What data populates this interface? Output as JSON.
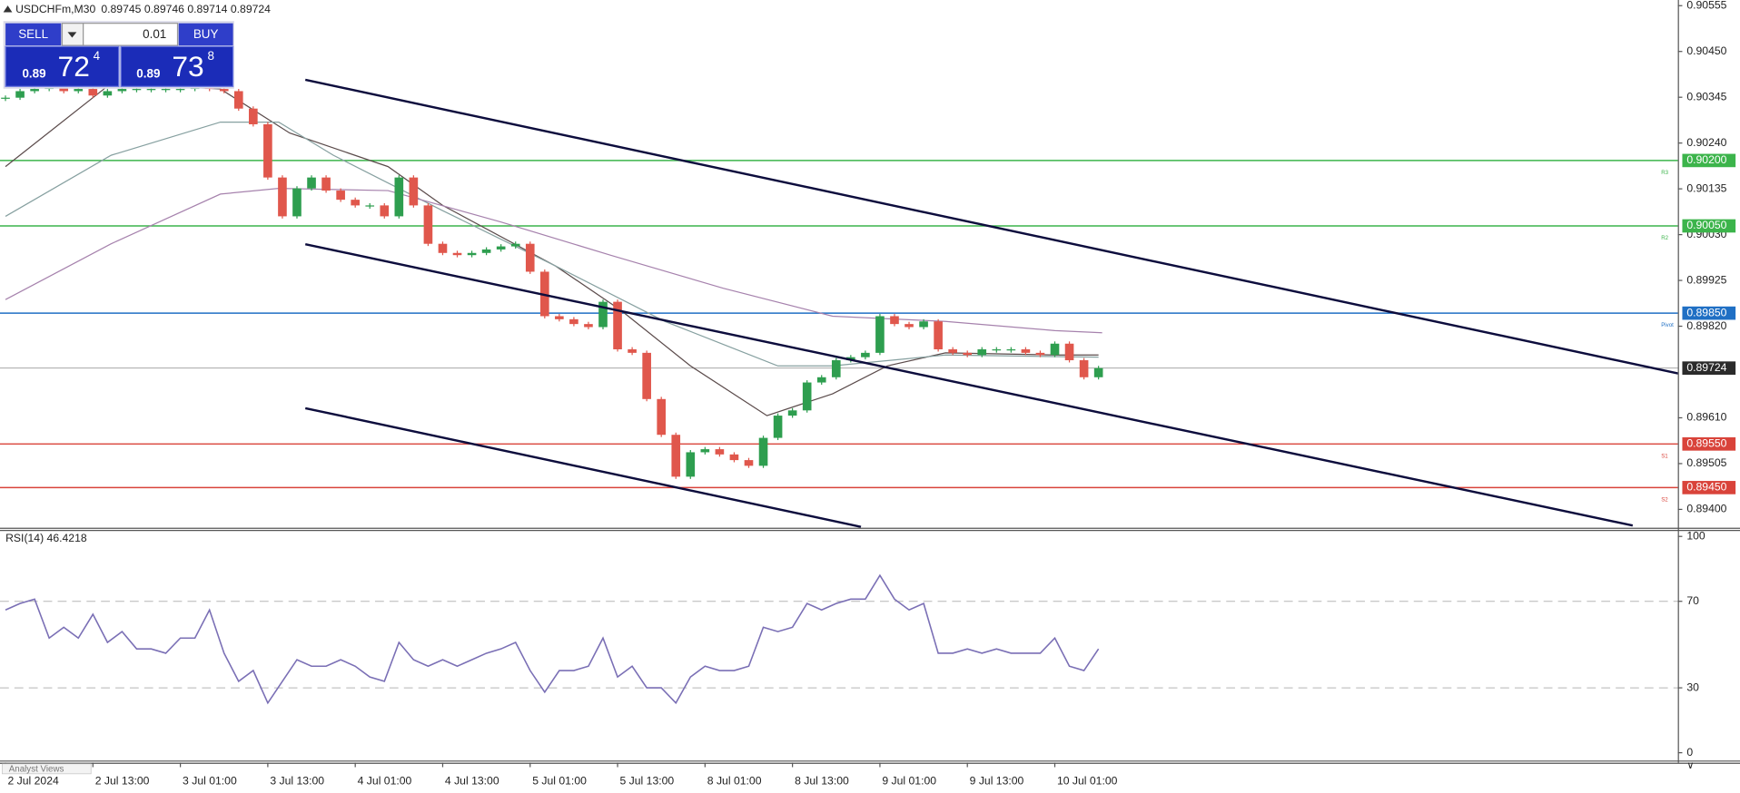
{
  "trade_panel": {
    "sell": "SELL",
    "lot": "0.01",
    "buy": "BUY",
    "bid_prefix": "0.89",
    "bid_big": "72",
    "bid_small": "4",
    "ask_prefix": "0.89",
    "ask_big": "73",
    "ask_small": "8"
  },
  "footer_tab": "Analyst Views",
  "chart_data": [
    {
      "type": "candlestick",
      "title": "USDCHFm,M30",
      "subtitle": "0.89745 0.89746 0.89714 0.89724",
      "up_color": "#2e9e4f",
      "down_color": "#e0574c",
      "x": [
        0,
        4,
        8,
        12,
        16,
        20,
        24,
        28,
        32,
        36,
        40,
        44,
        48,
        52,
        56,
        60,
        64,
        68,
        72,
        76,
        80,
        84,
        88,
        92,
        96,
        100,
        104,
        108,
        112,
        116,
        120,
        124,
        128,
        132,
        136,
        140,
        144,
        148,
        152,
        156,
        160,
        164,
        168,
        172,
        176,
        180,
        184,
        188,
        192,
        196,
        200,
        204,
        208,
        212,
        216,
        220,
        224,
        228,
        232,
        236,
        240,
        244,
        248,
        252,
        256,
        260,
        264,
        268,
        272,
        276,
        280,
        284,
        288,
        292,
        296,
        300
      ],
      "values": [
        0.90344,
        0.90359,
        0.90364,
        0.90369,
        0.90359,
        0.90364,
        0.90349,
        0.90359,
        0.90364,
        0.90364,
        0.90364,
        0.90364,
        0.90364,
        0.90369,
        0.90364,
        0.90359,
        0.90319,
        0.90283,
        0.90161,
        0.90072,
        0.90136,
        0.90161,
        0.90131,
        0.9011,
        0.90097,
        0.90097,
        0.90072,
        0.90161,
        0.90097,
        0.90009,
        0.89988,
        0.89983,
        0.89988,
        0.89996,
        0.90003,
        0.90009,
        0.89945,
        0.89843,
        0.89836,
        0.89825,
        0.89818,
        0.89876,
        0.89767,
        0.89759,
        0.89653,
        0.89571,
        0.89475,
        0.89531,
        0.89538,
        0.89526,
        0.89513,
        0.895,
        0.89564,
        0.89615,
        0.89627,
        0.89691,
        0.89703,
        0.89742,
        0.89749,
        0.89759,
        0.89843,
        0.89825,
        0.89818,
        0.89831,
        0.89767,
        0.89759,
        0.89754,
        0.89767,
        0.89767,
        0.89767,
        0.89759,
        0.89754,
        0.8978,
        0.89742,
        0.89703,
        0.89724
      ],
      "xlim": [
        -1.5,
        459
      ],
      "ylim": [
        0.89358,
        0.90568
      ],
      "yticks": [
        0.90555,
        {
          "value": 0.9045,
          "label": "0.90450"
        },
        0.90345,
        {
          "value": 0.9024,
          "label": "0.90240"
        },
        0.90135,
        {
          "value": 0.9003,
          "label": "0.90030"
        },
        0.89925,
        {
          "value": 0.8982,
          "label": "0.89820"
        },
        {
          "value": 0.8961,
          "label": "0.89610"
        },
        0.89505,
        {
          "value": 0.894,
          "label": "0.89400"
        }
      ],
      "xticks": [
        {
          "value": 0,
          "label": "2 Jul 2024"
        },
        {
          "value": 24,
          "label": "2 Jul 13:00"
        },
        {
          "value": 48,
          "label": "3 Jul 01:00"
        },
        {
          "value": 72,
          "label": "3 Jul 13:00"
        },
        {
          "value": 96,
          "label": "4 Jul 01:00"
        },
        {
          "value": 120,
          "label": "4 Jul 13:00"
        },
        {
          "value": 144,
          "label": "5 Jul 01:00"
        },
        {
          "value": 168,
          "label": "5 Jul 13:00"
        },
        {
          "value": 192,
          "label": "8 Jul 01:00"
        },
        {
          "value": 216,
          "label": "8 Jul 13:00"
        },
        {
          "value": 240,
          "label": "9 Jul 01:00"
        },
        {
          "value": 264,
          "label": "9 Jul 13:00"
        },
        {
          "value": 288,
          "label": "10 Jul 01:00"
        }
      ],
      "moving_averages": [
        {
          "color": "#5b4b4b",
          "x": [
            0,
            29,
            59,
            78,
            105,
            120,
            151,
            169,
            188,
            209,
            227,
            242,
            258,
            288,
            300
          ],
          "values": [
            0.90186,
            0.90377,
            0.90364,
            0.90263,
            0.90186,
            0.90097,
            0.89958,
            0.89856,
            0.89729,
            0.89615,
            0.89665,
            0.89729,
            0.89759,
            0.89754,
            0.89754
          ]
        },
        {
          "color": "#86a0a0",
          "x": [
            0,
            29,
            59,
            75,
            90,
            120,
            151,
            181,
            212,
            227,
            258,
            300
          ],
          "values": [
            0.90072,
            0.90212,
            0.90288,
            0.90288,
            0.90212,
            0.90085,
            0.89958,
            0.89831,
            0.89729,
            0.89729,
            0.89754,
            0.89749
          ]
        },
        {
          "color": "#a682ad",
          "x": [
            0,
            29,
            59,
            75,
            105,
            136,
            166,
            197,
            227,
            258,
            288,
            301
          ],
          "values": [
            0.89881,
            0.90009,
            0.90123,
            0.90136,
            0.90131,
            0.90059,
            0.89983,
            0.89907,
            0.89843,
            0.89831,
            0.8981,
            0.89805
          ]
        }
      ],
      "trendline_color": "#0d0d3d",
      "trendlines": [
        {
          "x": [
            82.3,
            459.5
          ],
          "values": [
            0.90385,
            0.89711
          ]
        },
        {
          "x": [
            82.3,
            446.6
          ],
          "values": [
            0.90008,
            0.89363
          ]
        },
        {
          "x": [
            82.3,
            234.8
          ],
          "values": [
            0.89632,
            0.8936
          ]
        }
      ],
      "levels": [
        {
          "name": "R3",
          "value": 0.902,
          "label": "0.90200",
          "color": "#3cb44b"
        },
        {
          "name": "R2",
          "value": 0.9005,
          "label": "0.90050",
          "color": "#3cb44b"
        },
        {
          "name": "Pivot",
          "value": 0.8985,
          "label": "0.89850",
          "color": "#1f6fc4"
        },
        {
          "name": "S1",
          "value": 0.8955,
          "label": "0.89550",
          "color": "#d9433a"
        },
        {
          "name": "S2",
          "value": 0.8945,
          "label": "0.89450",
          "color": "#d9433a"
        }
      ],
      "current_price": {
        "value": 0.89724,
        "label": "0.89724",
        "color": "#2b2b2b"
      }
    },
    {
      "type": "line",
      "title": "RSI(14) 46.4218",
      "color": "#7a6fb5",
      "x": [
        0,
        4,
        8,
        12,
        16,
        20,
        24,
        28,
        32,
        36,
        40,
        44,
        48,
        52,
        56,
        60,
        64,
        68,
        72,
        76,
        80,
        84,
        88,
        92,
        96,
        100,
        104,
        108,
        112,
        116,
        120,
        124,
        128,
        132,
        136,
        140,
        144,
        148,
        152,
        156,
        160,
        164,
        168,
        172,
        176,
        180,
        184,
        188,
        192,
        196,
        200,
        204,
        208,
        212,
        216,
        220,
        224,
        228,
        232,
        236,
        240,
        244,
        248,
        252,
        256,
        260,
        264,
        268,
        272,
        276,
        280,
        284,
        288,
        292,
        296,
        300
      ],
      "values": [
        66,
        69,
        71,
        53,
        58,
        53,
        64,
        51,
        56,
        48,
        48,
        46,
        53,
        53,
        66,
        46,
        33,
        38,
        23,
        33,
        43,
        40,
        40,
        43,
        40,
        35,
        33,
        51,
        43,
        40,
        43,
        40,
        43,
        46,
        48,
        51,
        38,
        28,
        38,
        38,
        40,
        53,
        35,
        40,
        30,
        30,
        23,
        35,
        40,
        38,
        38,
        40,
        58,
        56,
        58,
        69,
        66,
        69,
        71,
        71,
        82,
        71,
        66,
        69,
        46,
        46,
        48,
        46,
        48,
        46,
        46,
        46,
        53,
        40,
        38,
        48
      ],
      "xlim": [
        -1.5,
        459
      ],
      "ylim": [
        -3.6,
        103
      ],
      "yticks": [
        0,
        30,
        70,
        100
      ],
      "grid": "dashed"
    }
  ]
}
